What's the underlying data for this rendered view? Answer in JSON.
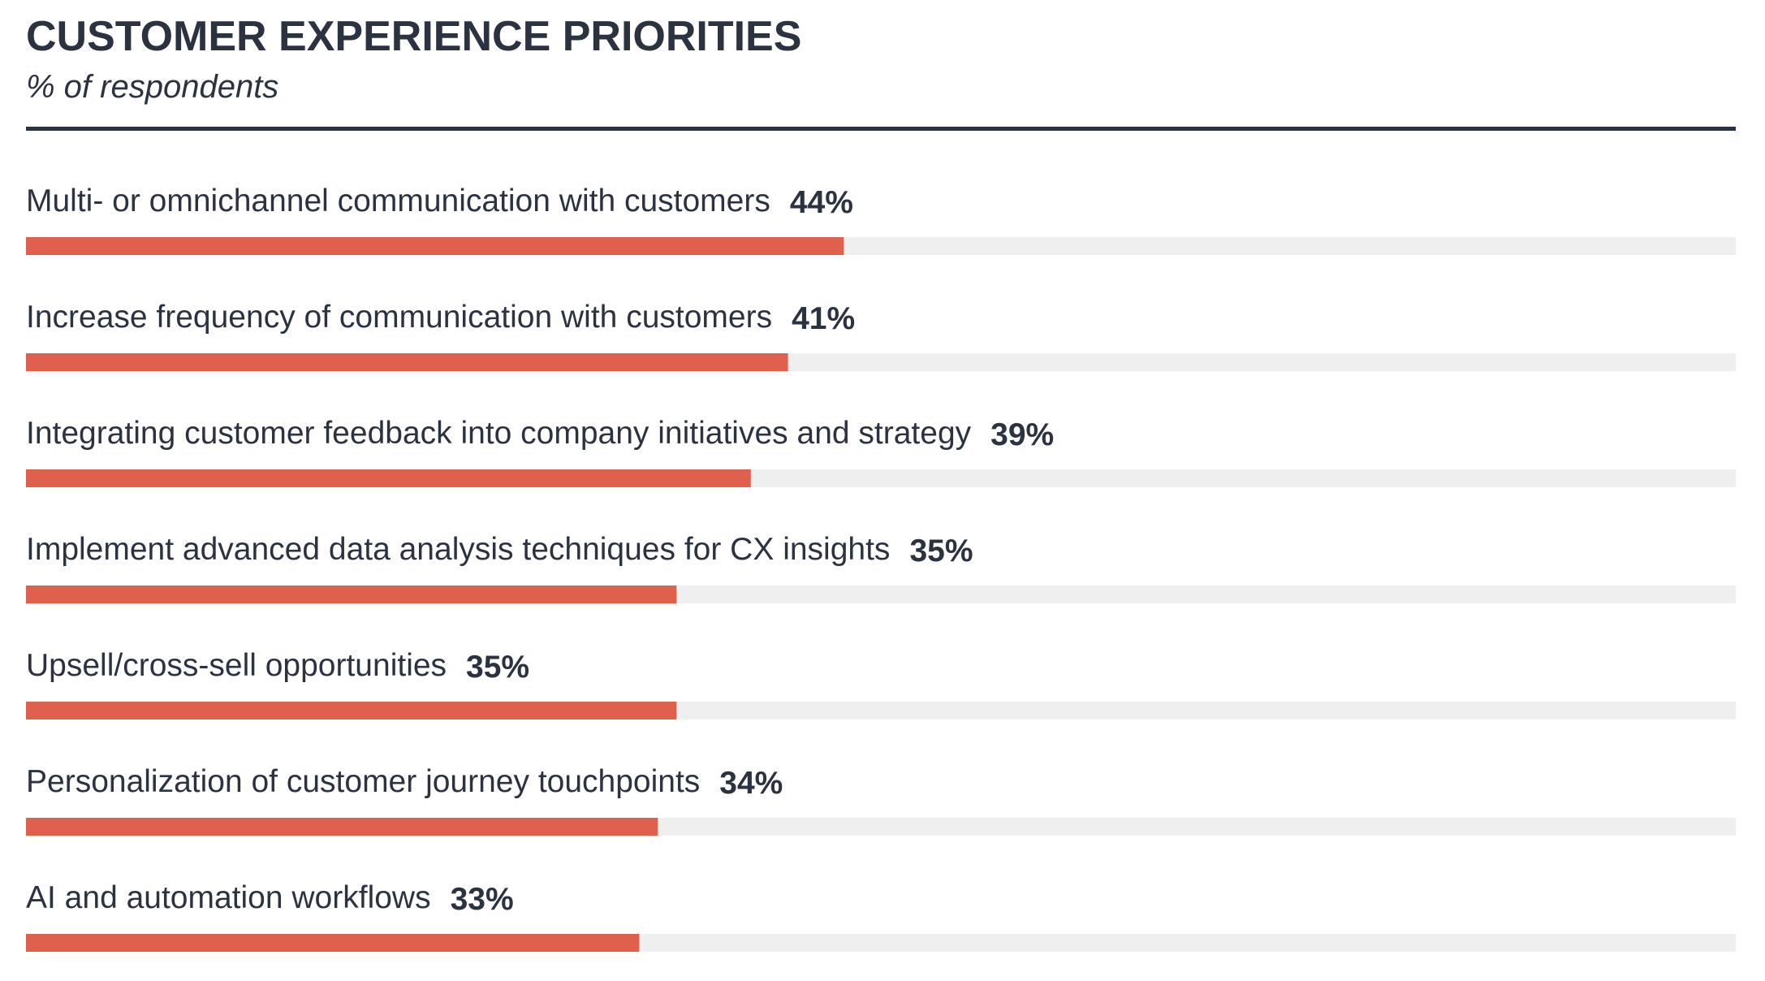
{
  "chart_data": {
    "type": "bar",
    "orientation": "horizontal",
    "title": "CUSTOMER EXPERIENCE PRIORITIES",
    "subtitle": "% of respondents",
    "categories": [
      "Multi- or omnichannel communication with customers",
      "Increase frequency of communication with customers",
      "Integrating customer feedback into company initiatives and strategy",
      "Implement advanced data analysis techniques for CX insights",
      "Upsell/cross-sell opportunities",
      "Personalization of customer journey touchpoints",
      "AI and automation workflows"
    ],
    "values": [
      44,
      41,
      39,
      35,
      35,
      34,
      33
    ],
    "value_labels": [
      "44%",
      "41%",
      "39%",
      "35%",
      "35%",
      "34%",
      "33%"
    ],
    "color": "#e0604e",
    "track_color": "#efefef",
    "xlim": [
      0,
      92
    ]
  }
}
